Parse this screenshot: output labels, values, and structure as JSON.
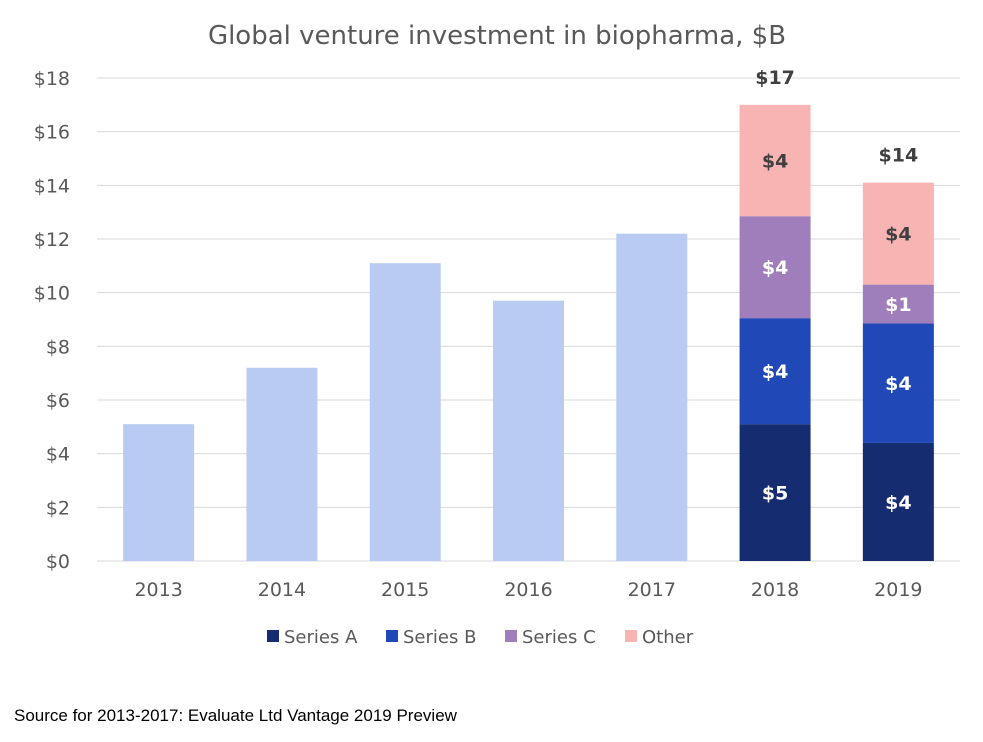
{
  "chart_data": {
    "type": "bar",
    "stacked": true,
    "title": "Global venture investment in biopharma, $B",
    "xlabel": "",
    "ylabel": "",
    "ylim": [
      0,
      18
    ],
    "yticks": [
      0,
      2,
      4,
      6,
      8,
      10,
      12,
      14,
      16,
      18
    ],
    "ytick_labels": [
      "$0",
      "$2",
      "$4",
      "$6",
      "$8",
      "$10",
      "$12",
      "$14",
      "$16",
      "$18"
    ],
    "grid": true,
    "categories": [
      "2013",
      "2014",
      "2015",
      "2016",
      "2017",
      "2018",
      "2019"
    ],
    "totals_series": {
      "name": "Total",
      "color": "#b9cbf2",
      "values": [
        5.1,
        7.2,
        11.1,
        9.7,
        12.2,
        null,
        null
      ]
    },
    "series": [
      {
        "name": "Series A",
        "color": "#162c70",
        "values": [
          null,
          null,
          null,
          null,
          null,
          5.1,
          4.4
        ],
        "labels": [
          "",
          "",
          "",
          "",
          "",
          "$5",
          "$4"
        ]
      },
      {
        "name": "Series B",
        "color": "#2048b6",
        "values": [
          null,
          null,
          null,
          null,
          null,
          3.95,
          4.45
        ],
        "labels": [
          "",
          "",
          "",
          "",
          "",
          "$4",
          "$4"
        ]
      },
      {
        "name": "Series C",
        "color": "#a07ebc",
        "values": [
          null,
          null,
          null,
          null,
          null,
          3.8,
          1.45
        ],
        "labels": [
          "",
          "",
          "",
          "",
          "",
          "$4",
          "$1"
        ]
      },
      {
        "name": "Other",
        "color": "#f8b4b2",
        "values": [
          null,
          null,
          null,
          null,
          null,
          4.15,
          3.8
        ],
        "labels": [
          "",
          "",
          "",
          "",
          "",
          "$4",
          "$4"
        ]
      }
    ],
    "total_labels": [
      "",
      "",
      "",
      "",
      "",
      "$17",
      "$14"
    ],
    "legend": {
      "position": "bottom",
      "entries": [
        "Series A",
        "Series B",
        "Series C",
        "Other"
      ]
    }
  },
  "source_note": "Source for 2013-2017: Evaluate Ltd Vantage 2019 Preview",
  "colors": {
    "gridline": "#d9d9d9",
    "axis": "#d9d9d9",
    "text": "#595959"
  }
}
